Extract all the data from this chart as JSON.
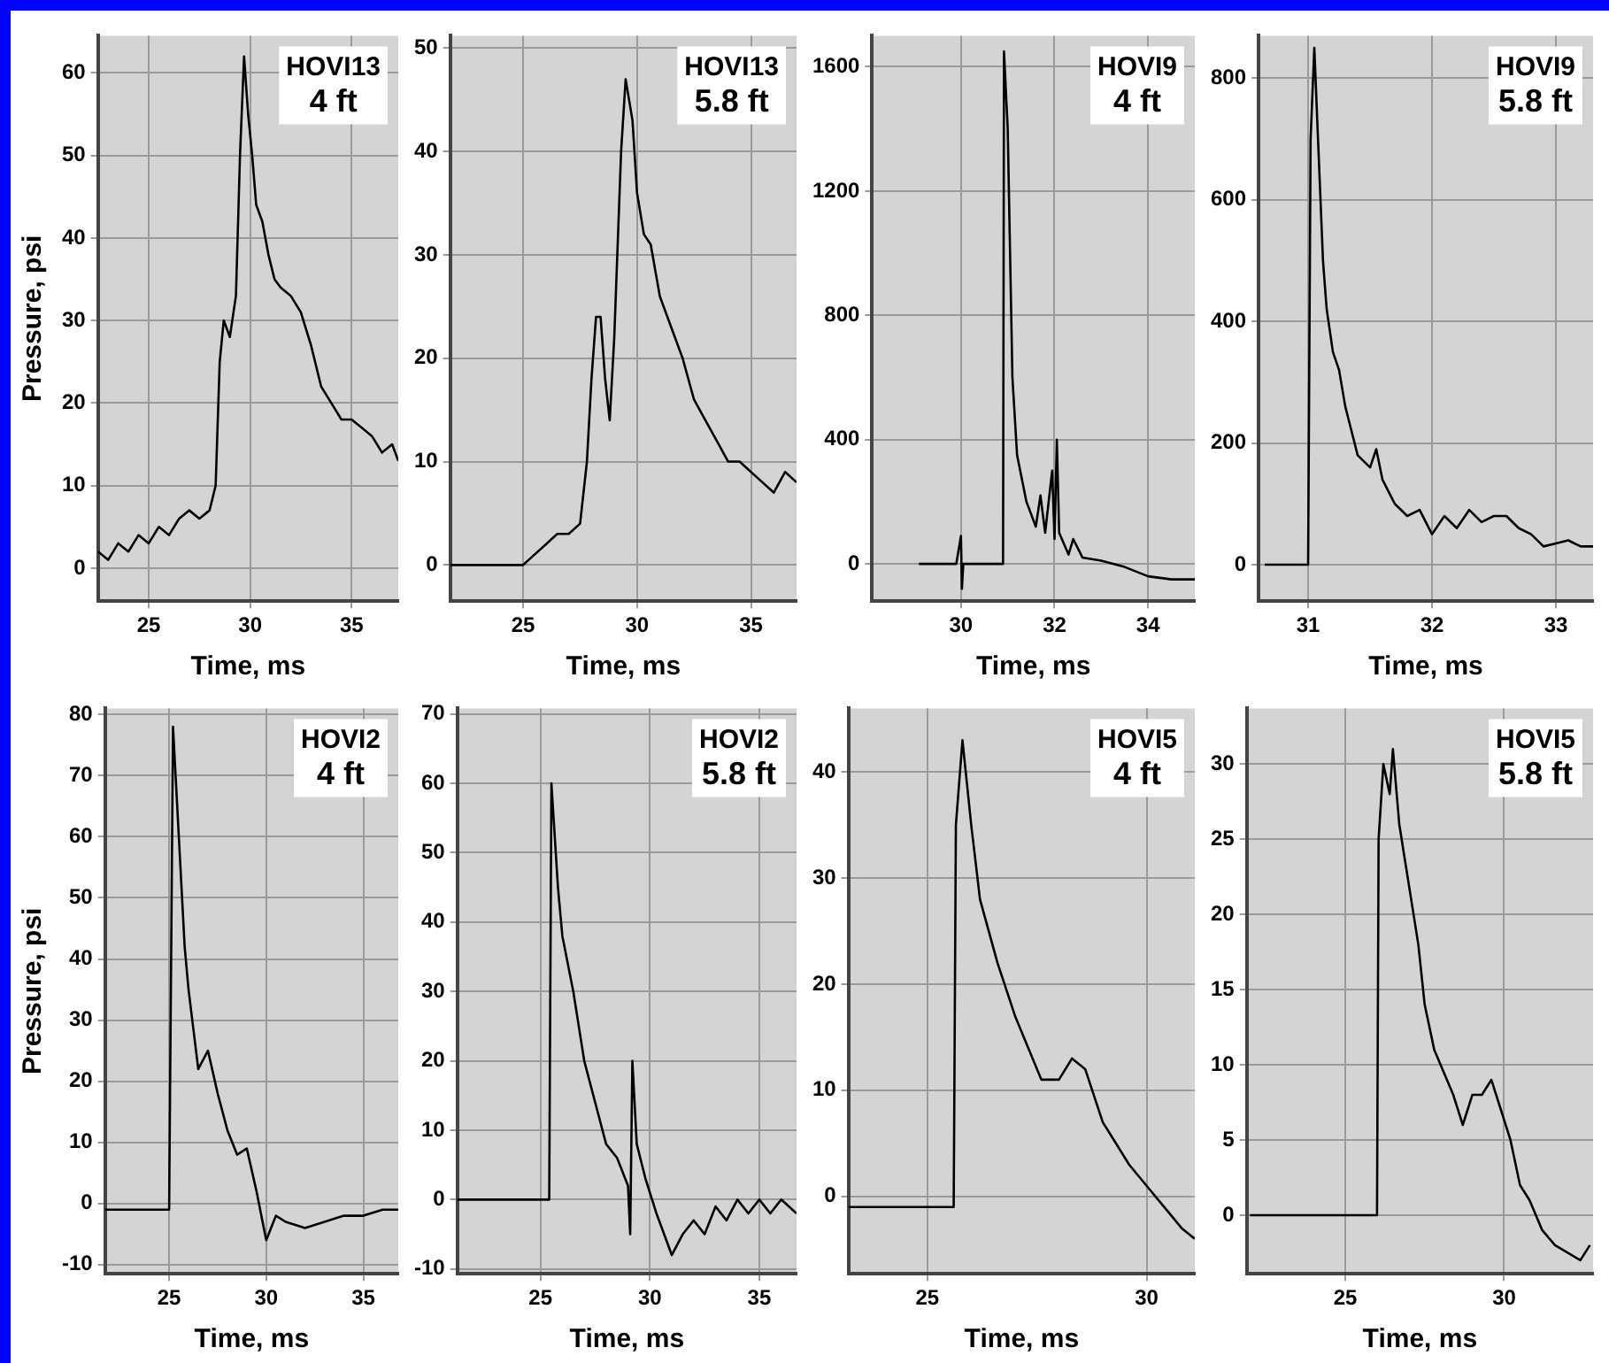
{
  "chart_data": [
    {
      "type": "line",
      "xlabel": "Time, ms",
      "ylabel": "Pressure, psi",
      "annotations": [
        "HOVI13",
        "4 ft"
      ],
      "grid": true,
      "legend": false,
      "xlim": [
        22.5,
        37.3
      ],
      "xticks": [
        25,
        30,
        35
      ],
      "ylim": [
        -4,
        64.5
      ],
      "yticks": [
        0,
        10,
        20,
        30,
        40,
        50,
        60
      ],
      "x": [
        22.5,
        23,
        23.5,
        24,
        24.5,
        25,
        25.5,
        26,
        26.5,
        27,
        27.5,
        28,
        28.3,
        28.5,
        28.7,
        29,
        29.3,
        29.5,
        29.7,
        29.9,
        30.1,
        30.3,
        30.6,
        30.9,
        31.2,
        31.5,
        32,
        32.5,
        33,
        33.5,
        34,
        34.5,
        35,
        35.5,
        36,
        36.5,
        37,
        37.3
      ],
      "series": [
        {
          "color": "#000000",
          "values": [
            2,
            1,
            3,
            2,
            4,
            3,
            5,
            4,
            6,
            7,
            6,
            7,
            10,
            25,
            30,
            28,
            33,
            50,
            62,
            55,
            50,
            44,
            42,
            38,
            35,
            34,
            33,
            31,
            27,
            22,
            20,
            18,
            18,
            17,
            16,
            14,
            15,
            13
          ]
        }
      ]
    },
    {
      "type": "line",
      "xlabel": "Time, ms",
      "annotations": [
        "HOVI13",
        "5.8 ft"
      ],
      "grid": true,
      "legend": false,
      "xlim": [
        21.8,
        37
      ],
      "xticks": [
        25,
        30,
        35
      ],
      "ylim": [
        -3.5,
        51.2
      ],
      "yticks": [
        0,
        10,
        20,
        30,
        40,
        50
      ],
      "x": [
        21.8,
        23,
        24,
        25,
        25.5,
        26,
        26.5,
        27,
        27.5,
        27.8,
        28,
        28.2,
        28.4,
        28.6,
        28.8,
        29,
        29.3,
        29.5,
        29.8,
        30,
        30.3,
        30.6,
        31,
        31.5,
        32,
        32.5,
        33,
        33.5,
        34,
        34.5,
        35,
        35.5,
        36,
        36.5,
        37
      ],
      "series": [
        {
          "color": "#000000",
          "values": [
            0,
            0,
            0,
            0,
            1,
            2,
            3,
            3,
            4,
            10,
            18,
            24,
            24,
            18,
            14,
            22,
            40,
            47,
            43,
            36,
            32,
            31,
            26,
            23,
            20,
            16,
            14,
            12,
            10,
            10,
            9,
            8,
            7,
            9,
            8
          ]
        }
      ]
    },
    {
      "type": "line",
      "xlabel": "Time, ms",
      "annotations": [
        "HOVI9",
        "4 ft"
      ],
      "grid": true,
      "legend": false,
      "xlim": [
        28.1,
        35
      ],
      "xticks": [
        30,
        32,
        34
      ],
      "ylim": [
        -120,
        1700
      ],
      "yticks": [
        0,
        400,
        800,
        1200,
        1600
      ],
      "x": [
        29.1,
        29.9,
        30,
        30.02,
        30.05,
        30.9,
        30.92,
        31,
        31.05,
        31.1,
        31.2,
        31.4,
        31.6,
        31.7,
        31.8,
        31.95,
        32,
        32.05,
        32.1,
        32.3,
        32.4,
        32.6,
        33,
        33.5,
        34,
        34.5,
        35
      ],
      "series": [
        {
          "color": "#000000",
          "values": [
            0,
            0,
            90,
            -80,
            0,
            0,
            1650,
            1400,
            1000,
            600,
            350,
            200,
            120,
            220,
            100,
            300,
            80,
            400,
            100,
            30,
            80,
            20,
            10,
            -10,
            -40,
            -50,
            -50
          ]
        }
      ]
    },
    {
      "type": "line",
      "xlabel": "Time, ms",
      "annotations": [
        "HOVI9",
        "5.8 ft"
      ],
      "grid": true,
      "legend": false,
      "xlim": [
        30.6,
        33.3
      ],
      "xticks": [
        31,
        32,
        33
      ],
      "ylim": [
        -60,
        870
      ],
      "yticks": [
        0,
        200,
        400,
        600,
        800
      ],
      "x": [
        30.65,
        31,
        31.02,
        31.05,
        31.08,
        31.12,
        31.15,
        31.2,
        31.25,
        31.3,
        31.4,
        31.5,
        31.55,
        31.6,
        31.7,
        31.8,
        31.9,
        32,
        32.1,
        32.2,
        32.3,
        32.4,
        32.5,
        32.6,
        32.7,
        32.8,
        32.9,
        33,
        33.1,
        33.2,
        33.3
      ],
      "series": [
        {
          "color": "#000000",
          "values": [
            0,
            0,
            700,
            850,
            700,
            500,
            420,
            350,
            320,
            260,
            180,
            160,
            190,
            140,
            100,
            80,
            90,
            50,
            80,
            60,
            90,
            70,
            80,
            80,
            60,
            50,
            30,
            35,
            40,
            30,
            30
          ]
        }
      ]
    },
    {
      "type": "line",
      "xlabel": "Time, ms",
      "ylabel": "Pressure, psi",
      "annotations": [
        "HOVI2",
        "4 ft"
      ],
      "grid": true,
      "legend": false,
      "xlim": [
        21.7,
        36.8
      ],
      "xticks": [
        25,
        30,
        35
      ],
      "ylim": [
        -11.5,
        81
      ],
      "yticks": [
        -10,
        0,
        10,
        20,
        30,
        40,
        50,
        60,
        70,
        80
      ],
      "x": [
        21.7,
        23,
        24,
        25,
        25.2,
        25.5,
        25.8,
        26,
        26.5,
        27,
        27.5,
        28,
        28.5,
        29,
        29.5,
        30,
        30.5,
        31,
        32,
        33,
        34,
        35,
        36,
        36.8
      ],
      "series": [
        {
          "color": "#000000",
          "values": [
            -1,
            -1,
            -1,
            -1,
            78,
            60,
            42,
            35,
            22,
            25,
            18,
            12,
            8,
            9,
            2,
            -6,
            -2,
            -3,
            -4,
            -3,
            -2,
            -2,
            -1,
            -1
          ]
        }
      ]
    },
    {
      "type": "line",
      "xlabel": "Time, ms",
      "annotations": [
        "HOVI2",
        "5.8 ft"
      ],
      "grid": true,
      "legend": false,
      "xlim": [
        21.2,
        36.7
      ],
      "xticks": [
        25,
        30,
        35
      ],
      "ylim": [
        -10.7,
        70.8
      ],
      "yticks": [
        -10,
        0,
        10,
        20,
        30,
        40,
        50,
        60,
        70
      ],
      "x": [
        21.2,
        23,
        25,
        25.4,
        25.5,
        25.8,
        26,
        26.5,
        27,
        27.5,
        28,
        28.5,
        29,
        29.1,
        29.2,
        29.4,
        29.8,
        30.3,
        31,
        31.5,
        32,
        32.5,
        33,
        33.5,
        34,
        34.5,
        35,
        35.5,
        36,
        36.7
      ],
      "series": [
        {
          "color": "#000000",
          "values": [
            0,
            0,
            0,
            0,
            60,
            45,
            38,
            30,
            20,
            14,
            8,
            6,
            2,
            -5,
            20,
            8,
            3,
            -2,
            -8,
            -5,
            -3,
            -5,
            -1,
            -3,
            0,
            -2,
            0,
            -2,
            0,
            -2
          ]
        }
      ]
    },
    {
      "type": "line",
      "xlabel": "Time, ms",
      "annotations": [
        "HOVI5",
        "4 ft"
      ],
      "grid": true,
      "legend": false,
      "xlim": [
        23.2,
        31.1
      ],
      "xticks": [
        25,
        30
      ],
      "ylim": [
        -7.3,
        46
      ],
      "yticks": [
        0,
        10,
        20,
        30,
        40
      ],
      "x": [
        23.2,
        24,
        25,
        25.6,
        25.65,
        25.8,
        26,
        26.2,
        26.4,
        26.6,
        27,
        27.3,
        27.6,
        28,
        28.3,
        28.6,
        29,
        29.3,
        29.6,
        30,
        30.4,
        30.8,
        31.1
      ],
      "series": [
        {
          "color": "#000000",
          "values": [
            -1,
            -1,
            -1,
            -1,
            35,
            43,
            35,
            28,
            25,
            22,
            17,
            14,
            11,
            11,
            13,
            12,
            7,
            5,
            3,
            1,
            -1,
            -3,
            -4
          ]
        }
      ]
    },
    {
      "type": "line",
      "xlabel": "Time, ms",
      "annotations": [
        "HOVI5",
        "5.8 ft"
      ],
      "grid": true,
      "legend": false,
      "xlim": [
        21.9,
        32.8
      ],
      "xticks": [
        25,
        30
      ],
      "ylim": [
        -3.9,
        33.7
      ],
      "yticks": [
        0,
        5,
        10,
        15,
        20,
        25,
        30
      ],
      "x": [
        22,
        24,
        26,
        26.05,
        26.2,
        26.4,
        26.5,
        26.7,
        27,
        27.3,
        27.5,
        27.8,
        28,
        28.4,
        28.7,
        29,
        29.3,
        29.6,
        29.9,
        30.2,
        30.5,
        30.8,
        31.2,
        31.6,
        32,
        32.4,
        32.7
      ],
      "series": [
        {
          "color": "#000000",
          "values": [
            0,
            0,
            0,
            25,
            30,
            28,
            31,
            26,
            22,
            18,
            14,
            11,
            10,
            8,
            6,
            8,
            8,
            9,
            7,
            5,
            2,
            1,
            -1,
            -2,
            -2.5,
            -3,
            -2
          ]
        }
      ]
    }
  ]
}
